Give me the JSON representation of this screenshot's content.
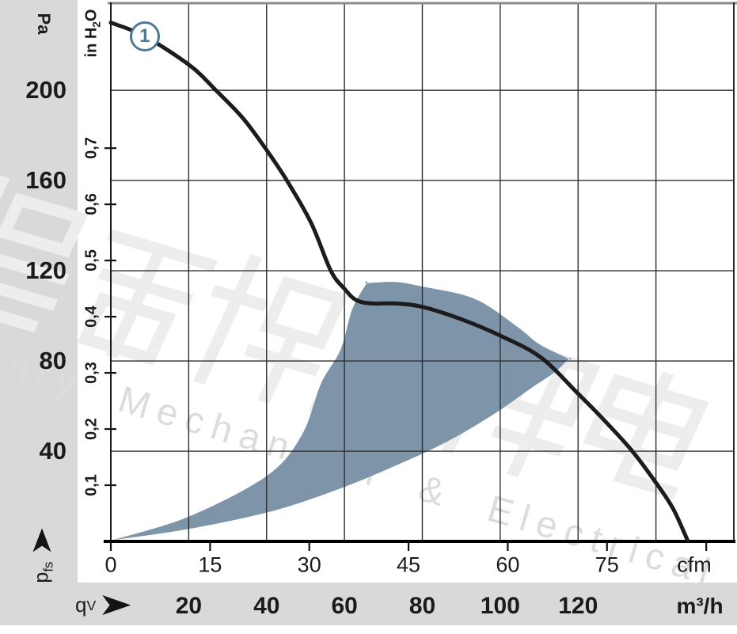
{
  "labels": {
    "pa_unit": "Pa",
    "inh2o_unit": {
      "pre": "in H",
      "sub": "2",
      "post": "O"
    },
    "cfm_unit": "cfm",
    "m3h_unit": "m³/h",
    "qv": {
      "main": "q",
      "sub": "V"
    },
    "pfs": {
      "main": "p",
      "sub": "fs"
    }
  },
  "curve_label": {
    "text": "1",
    "position_m3h_pa": [
      8.7,
      224
    ]
  },
  "watermark": {
    "text": "Henry Mechanical & Electrical"
  },
  "colors": {
    "region_fill": "#7e94a9",
    "badge_blue": "#4d7996",
    "curve": "#1c1c1c",
    "grid": "#2e2e2e",
    "band_gray": "#d9d9d9",
    "watermark_gray": "#dcdcdc"
  },
  "chart_data": {
    "type": "line",
    "title": "Fan air performance: static pressure vs. volume flow",
    "xlabel_primary": "qV (m³/h)",
    "xlabel_secondary": "cfm",
    "ylabel_primary": "pfs (Pa)",
    "ylabel_secondary": "in H2O",
    "x_range_m3h": [
      0,
      160
    ],
    "y_range_pa": [
      0,
      239
    ],
    "grid": true,
    "x_gridlines_m3h": [
      20,
      40,
      60,
      80,
      100,
      120,
      140
    ],
    "y_gridlines_pa": [
      40,
      80,
      120,
      160,
      200
    ],
    "pa_ticks": [
      {
        "v": 200,
        "label": "200"
      },
      {
        "v": 160,
        "label": "160"
      },
      {
        "v": 120,
        "label": "120"
      },
      {
        "v": 80,
        "label": "80"
      },
      {
        "v": 40,
        "label": "40"
      }
    ],
    "inh2o_ticks": [
      {
        "v": 0.7,
        "label": "0,7"
      },
      {
        "v": 0.6,
        "label": "0,6"
      },
      {
        "v": 0.5,
        "label": "0,5"
      },
      {
        "v": 0.4,
        "label": "0,4"
      },
      {
        "v": 0.3,
        "label": "0,3"
      },
      {
        "v": 0.2,
        "label": "0,2"
      },
      {
        "v": 0.1,
        "label": "0,1"
      }
    ],
    "inh2o_to_pa": 249.089,
    "cfm_to_m3h": 1.699,
    "cfm_ticks": [
      {
        "v": 0,
        "label": "0"
      },
      {
        "v": 15,
        "label": "15"
      },
      {
        "v": 30,
        "label": "30"
      },
      {
        "v": 45,
        "label": "45"
      },
      {
        "v": 60,
        "label": "60"
      },
      {
        "v": 75,
        "label": "75"
      },
      {
        "v": 90,
        "label": ""
      }
    ],
    "m3h_ticks": [
      {
        "v": 20,
        "label": "20"
      },
      {
        "v": 40,
        "label": "40"
      },
      {
        "v": 60,
        "label": "60"
      },
      {
        "v": 80,
        "label": "80"
      },
      {
        "v": 100,
        "label": "100"
      },
      {
        "v": 120,
        "label": "120"
      }
    ],
    "series": [
      {
        "name": "1",
        "points_m3h_pa": [
          [
            0,
            230
          ],
          [
            8.7,
            224
          ],
          [
            20.3,
            211
          ],
          [
            27,
            200
          ],
          [
            34,
            187.5
          ],
          [
            40,
            173.5
          ],
          [
            45.4,
            159.5
          ],
          [
            51.5,
            141
          ],
          [
            56.5,
            120
          ],
          [
            60,
            112
          ],
          [
            63,
            107
          ],
          [
            67,
            105.5
          ],
          [
            73,
            105.5
          ],
          [
            80,
            104
          ],
          [
            90,
            98.5
          ],
          [
            100.3,
            91
          ],
          [
            110.5,
            81.5
          ],
          [
            120,
            65.5
          ],
          [
            126,
            55
          ],
          [
            133.7,
            40.5
          ],
          [
            140,
            26
          ],
          [
            144.4,
            14.5
          ],
          [
            148.1,
            0.5
          ]
        ]
      }
    ],
    "operating_region": {
      "boundary_m3h_pa": [
        [
          0.3,
          0.5
        ],
        [
          20,
          11
        ],
        [
          40,
          29
        ],
        [
          49,
          47
        ],
        [
          54,
          70
        ],
        [
          59,
          85
        ],
        [
          62,
          103
        ],
        [
          65.7,
          114.5
        ],
        [
          73,
          115
        ],
        [
          80,
          113
        ],
        [
          93.5,
          107.5
        ],
        [
          104.5,
          95
        ],
        [
          110,
          87.5
        ],
        [
          117.6,
          81
        ],
        [
          114,
          75
        ],
        [
          108,
          68
        ],
        [
          98,
          56
        ],
        [
          85.5,
          43.5
        ],
        [
          69,
          30.5
        ],
        [
          55,
          21
        ],
        [
          40.5,
          13
        ],
        [
          20,
          5.5
        ]
      ],
      "sharp_corner_indices": [
        0,
        7,
        13
      ]
    }
  }
}
